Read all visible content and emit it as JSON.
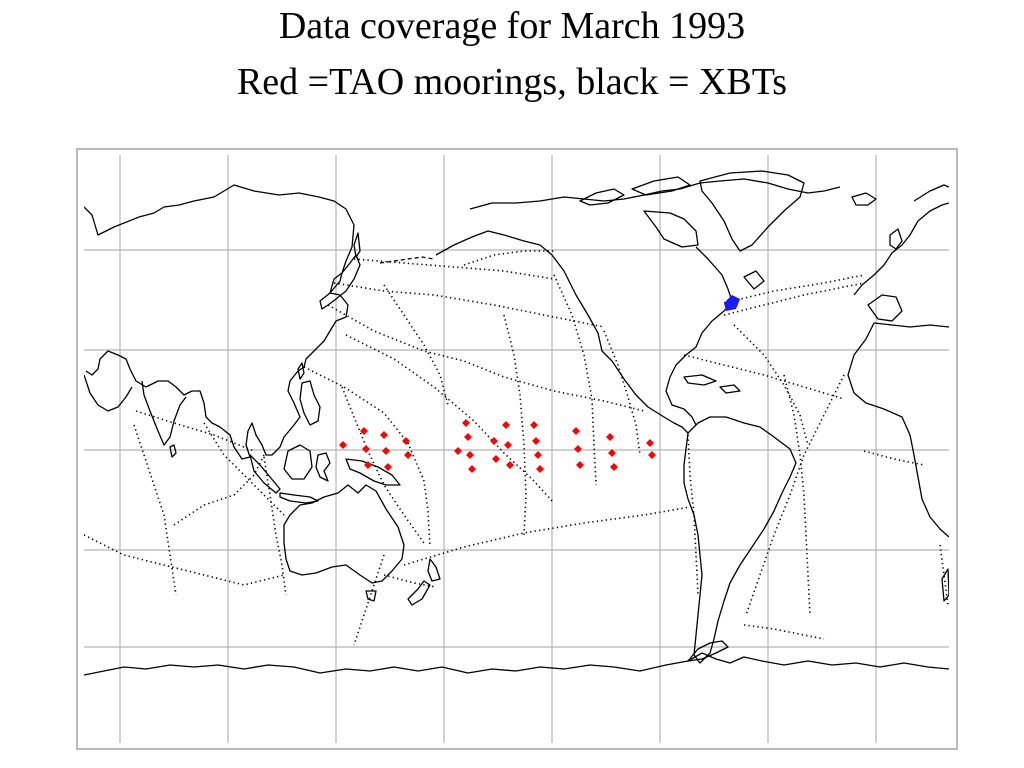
{
  "title": {
    "line1": "Data coverage for March 1993",
    "line2": "Red =TAO moorings, black = XBTs"
  },
  "map": {
    "projection": "equirectangular",
    "central_longitude": 160,
    "grid": true,
    "grid_color": "#b4b4b4",
    "coastline_color": "#000000",
    "legend": {
      "TAO moorings": "#ff0000",
      "XBTs": "#000000"
    },
    "highlight_color": "#1a1aff"
  }
}
